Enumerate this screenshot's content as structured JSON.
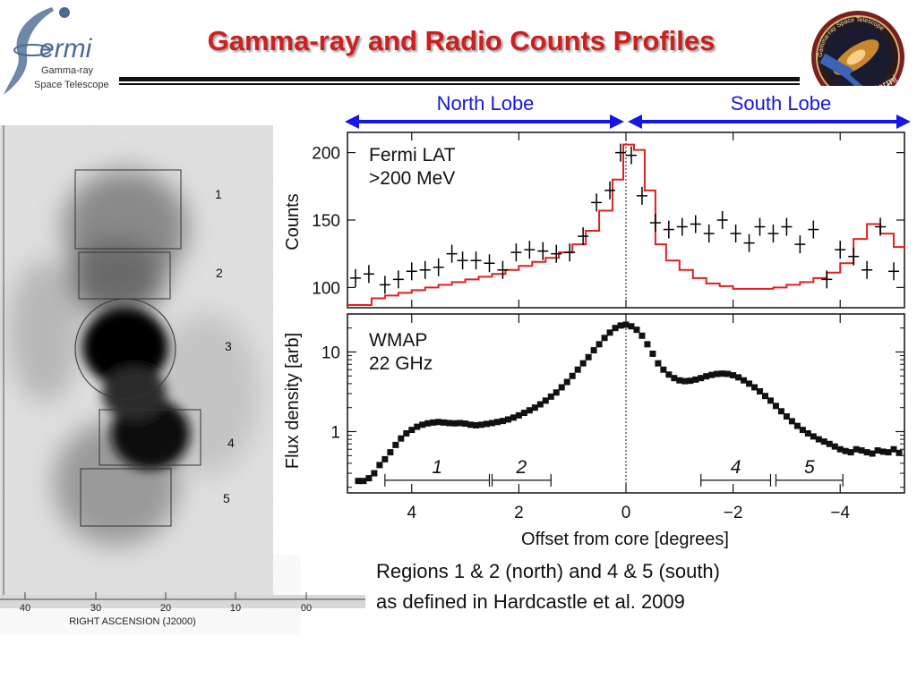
{
  "slide": {
    "title": "Gamma-ray and Radio Counts Profiles"
  },
  "logo_left": {
    "wordmark": "ermi",
    "line1": "Gamma-ray",
    "line2": "Space Telescope"
  },
  "logo_right": {
    "ring_text": "Gamma-ray Space Telescope",
    "label": "Fermi"
  },
  "lobes": {
    "north": "North Lobe",
    "south": "South Lobe",
    "arrow_color": "#1616e6"
  },
  "map": {
    "xlabel": "RIGHT ASCENSION (J2000)",
    "xticks": [
      "40",
      "30",
      "20",
      "10",
      "00"
    ],
    "region_labels": [
      "1",
      "2",
      "3",
      "4",
      "5"
    ]
  },
  "caption": {
    "line1": "Regions 1 & 2 (north) and 4 & 5 (south)",
    "line2": "as defined in Hardcastle et al. 2009"
  },
  "chart_data": [
    {
      "type": "line",
      "panel": "top",
      "annotation": [
        "Fermi LAT",
        ">200 MeV"
      ],
      "ylabel": "Counts",
      "xlabel": "",
      "xlim": [
        5.2,
        -5.2
      ],
      "ylim": [
        85,
        215
      ],
      "yscale": "linear",
      "yticks": [
        100,
        150,
        200
      ],
      "model_color": "#e02020",
      "data_color": "#000000",
      "series": [
        {
          "kind": "errorbar",
          "x": [
            5.05,
            4.8,
            4.5,
            4.25,
            4.0,
            3.75,
            3.5,
            3.25,
            3.05,
            2.8,
            2.55,
            2.3,
            2.05,
            1.8,
            1.55,
            1.3,
            1.05,
            0.8,
            0.55,
            0.3,
            0.1,
            -0.1,
            -0.3,
            -0.55,
            -0.8,
            -1.05,
            -1.3,
            -1.55,
            -1.8,
            -2.05,
            -2.3,
            -2.5,
            -2.75,
            -3.0,
            -3.25,
            -3.5,
            -3.75,
            -4.0,
            -4.25,
            -4.5,
            -4.75,
            -5.0
          ],
          "y": [
            107,
            110,
            102,
            106,
            112,
            113,
            115,
            125,
            120,
            120,
            118,
            113,
            126,
            128,
            127,
            125,
            126,
            138,
            163,
            172,
            200,
            198,
            168,
            148,
            143,
            145,
            147,
            140,
            150,
            140,
            133,
            145,
            140,
            145,
            132,
            143,
            106,
            128,
            123,
            113,
            145,
            112
          ]
        },
        {
          "kind": "step",
          "x": [
            5.2,
            4.75,
            4.5,
            4.25,
            4.0,
            3.75,
            3.5,
            3.25,
            3.0,
            2.75,
            2.5,
            2.25,
            2.0,
            1.75,
            1.5,
            1.25,
            1.0,
            0.75,
            0.5,
            0.25,
            0.05,
            -0.15,
            -0.35,
            -0.55,
            -0.75,
            -1.0,
            -1.25,
            -1.5,
            -1.75,
            -2.0,
            -2.25,
            -2.5,
            -2.75,
            -3.0,
            -3.25,
            -3.5,
            -3.75,
            -4.0,
            -4.25,
            -4.5,
            -4.75,
            -5.0,
            -5.2
          ],
          "y": [
            87,
            92,
            94,
            96,
            98,
            100,
            102,
            104,
            106,
            108,
            110,
            113,
            116,
            119,
            122,
            126,
            132,
            142,
            157,
            180,
            206,
            202,
            172,
            132,
            120,
            113,
            107,
            103,
            101,
            99,
            99,
            99,
            100,
            102,
            104,
            107,
            111,
            118,
            136,
            147,
            140,
            130,
            128
          ]
        }
      ]
    },
    {
      "type": "scatter",
      "panel": "bottom",
      "annotation": [
        "WMAP",
        "22 GHz"
      ],
      "ylabel": "Flux density [arb]",
      "xlabel": "Offset from core [degrees]",
      "xlim": [
        5.2,
        -5.2
      ],
      "ylim": [
        0.17,
        30
      ],
      "yscale": "log",
      "yticks": [
        1,
        10
      ],
      "xticks": [
        4,
        2,
        0,
        -2,
        -4
      ],
      "xtick_labels": [
        "4",
        "2",
        "0",
        "−2",
        "−4"
      ],
      "regions": [
        {
          "label": "1",
          "from": 4.5,
          "to": 2.55
        },
        {
          "label": "2",
          "from": 2.5,
          "to": 1.4
        },
        {
          "label": "4",
          "from": -1.4,
          "to": -2.7
        },
        {
          "label": "5",
          "from": -2.8,
          "to": -4.05
        }
      ],
      "series": [
        {
          "kind": "markers",
          "x": [
            5.0,
            4.9,
            4.8,
            4.7,
            4.6,
            4.5,
            4.4,
            4.3,
            4.2,
            4.1,
            4.0,
            3.9,
            3.8,
            3.7,
            3.6,
            3.5,
            3.4,
            3.3,
            3.2,
            3.1,
            3.0,
            2.9,
            2.8,
            2.7,
            2.6,
            2.5,
            2.4,
            2.3,
            2.2,
            2.1,
            2.0,
            1.9,
            1.8,
            1.7,
            1.6,
            1.5,
            1.4,
            1.3,
            1.2,
            1.1,
            1.0,
            0.9,
            0.8,
            0.7,
            0.6,
            0.5,
            0.4,
            0.3,
            0.2,
            0.1,
            0.0,
            -0.1,
            -0.2,
            -0.3,
            -0.4,
            -0.5,
            -0.6,
            -0.7,
            -0.8,
            -0.9,
            -1.0,
            -1.1,
            -1.2,
            -1.3,
            -1.4,
            -1.5,
            -1.6,
            -1.7,
            -1.8,
            -1.9,
            -2.0,
            -2.1,
            -2.2,
            -2.3,
            -2.4,
            -2.5,
            -2.6,
            -2.7,
            -2.8,
            -2.9,
            -3.0,
            -3.1,
            -3.2,
            -3.3,
            -3.4,
            -3.5,
            -3.6,
            -3.7,
            -3.8,
            -3.9,
            -4.0,
            -4.1,
            -4.2,
            -4.3,
            -4.4,
            -4.5,
            -4.6,
            -4.7,
            -4.8,
            -4.9,
            -5.0,
            -5.1
          ],
          "y": [
            0.24,
            0.24,
            0.26,
            0.3,
            0.38,
            0.45,
            0.55,
            0.68,
            0.82,
            0.95,
            1.05,
            1.15,
            1.22,
            1.27,
            1.3,
            1.32,
            1.3,
            1.28,
            1.27,
            1.28,
            1.26,
            1.22,
            1.2,
            1.22,
            1.25,
            1.28,
            1.32,
            1.36,
            1.42,
            1.5,
            1.6,
            1.72,
            1.85,
            2.0,
            2.2,
            2.45,
            2.75,
            3.1,
            3.6,
            4.2,
            5.0,
            6.0,
            7.2,
            8.6,
            10.5,
            12.5,
            15.0,
            17.5,
            20.0,
            21.5,
            22.0,
            21.0,
            19.0,
            16.0,
            12.5,
            9.5,
            7.2,
            6.0,
            5.2,
            4.7,
            4.4,
            4.3,
            4.35,
            4.5,
            4.7,
            4.95,
            5.15,
            5.3,
            5.35,
            5.3,
            5.1,
            4.8,
            4.4,
            4.0,
            3.6,
            3.2,
            2.8,
            2.45,
            2.1,
            1.8,
            1.55,
            1.35,
            1.18,
            1.05,
            0.95,
            0.87,
            0.8,
            0.75,
            0.7,
            0.65,
            0.6,
            0.57,
            0.55,
            0.6,
            0.58,
            0.55,
            0.53,
            0.58,
            0.56,
            0.55,
            0.6,
            0.54
          ]
        }
      ]
    }
  ]
}
